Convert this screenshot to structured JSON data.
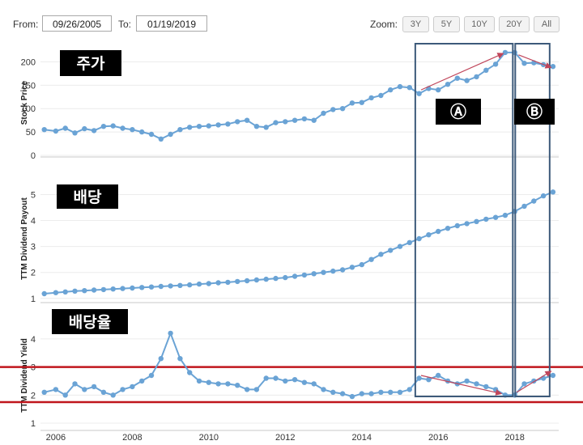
{
  "toolbar": {
    "from_label": "From:",
    "from_value": "09/26/2005",
    "to_label": "To:",
    "to_value": "01/19/2019",
    "zoom_label": "Zoom:",
    "zoom_options": [
      "3Y",
      "5Y",
      "10Y",
      "20Y",
      "All"
    ]
  },
  "colors": {
    "series": "#6aa3d5",
    "highlight_box": "#3d5a7a",
    "threshold_line": "#c0161c",
    "trend_arrow": "#c0455a"
  },
  "annotations": {
    "price_tag": "주가",
    "dividend_tag": "배당",
    "yield_tag": "배당율",
    "period_a": "Ⓐ",
    "period_b": "Ⓑ"
  },
  "chart_data": [
    {
      "type": "line",
      "ylabel": "Stock Price",
      "yticks": [
        0,
        50,
        100,
        150,
        200
      ],
      "ylim": [
        0,
        225
      ],
      "x": [
        2005.7,
        2006,
        2006.25,
        2006.5,
        2006.75,
        2007,
        2007.25,
        2007.5,
        2007.75,
        2008,
        2008.25,
        2008.5,
        2008.75,
        2009,
        2009.25,
        2009.5,
        2009.75,
        2010,
        2010.25,
        2010.5,
        2010.75,
        2011,
        2011.25,
        2011.5,
        2011.75,
        2012,
        2012.25,
        2012.5,
        2012.75,
        2013,
        2013.25,
        2013.5,
        2013.75,
        2014,
        2014.25,
        2014.5,
        2014.75,
        2015,
        2015.25,
        2015.5,
        2015.75,
        2016,
        2016.25,
        2016.5,
        2016.75,
        2017,
        2017.25,
        2017.5,
        2017.75,
        2018,
        2018.25,
        2018.5,
        2018.75,
        2019
      ],
      "values": [
        55,
        52,
        58,
        48,
        57,
        53,
        62,
        63,
        58,
        55,
        50,
        45,
        35,
        45,
        55,
        60,
        62,
        63,
        65,
        67,
        72,
        75,
        62,
        60,
        70,
        72,
        75,
        78,
        75,
        90,
        98,
        100,
        112,
        113,
        123,
        128,
        140,
        147,
        145,
        132,
        143,
        140,
        152,
        165,
        160,
        168,
        182,
        195,
        220,
        220,
        197,
        198,
        194,
        190
      ],
      "xticks": [
        2006,
        2008,
        2010,
        2012,
        2014,
        2016,
        2018
      ]
    },
    {
      "type": "line",
      "ylabel": "TTM Dividend Payout",
      "yticks": [
        1,
        2,
        3,
        4,
        5
      ],
      "ylim": [
        0.9,
        5.7
      ],
      "x": [
        2005.7,
        2006,
        2006.25,
        2006.5,
        2006.75,
        2007,
        2007.25,
        2007.5,
        2007.75,
        2008,
        2008.25,
        2008.5,
        2008.75,
        2009,
        2009.25,
        2009.5,
        2009.75,
        2010,
        2010.25,
        2010.5,
        2010.75,
        2011,
        2011.25,
        2011.5,
        2011.75,
        2012,
        2012.25,
        2012.5,
        2012.75,
        2013,
        2013.25,
        2013.5,
        2013.75,
        2014,
        2014.25,
        2014.5,
        2014.75,
        2015,
        2015.25,
        2015.5,
        2015.75,
        2016,
        2016.25,
        2016.5,
        2016.75,
        2017,
        2017.25,
        2017.5,
        2017.75,
        2018,
        2018.25,
        2018.5,
        2018.75,
        2019
      ],
      "values": [
        1.18,
        1.22,
        1.25,
        1.28,
        1.3,
        1.32,
        1.34,
        1.36,
        1.38,
        1.4,
        1.42,
        1.44,
        1.46,
        1.48,
        1.5,
        1.52,
        1.55,
        1.57,
        1.6,
        1.62,
        1.65,
        1.68,
        1.71,
        1.74,
        1.77,
        1.8,
        1.85,
        1.9,
        1.95,
        2.0,
        2.05,
        2.1,
        2.2,
        2.3,
        2.5,
        2.7,
        2.85,
        3.0,
        3.15,
        3.3,
        3.45,
        3.58,
        3.7,
        3.8,
        3.88,
        3.96,
        4.05,
        4.12,
        4.2,
        4.35,
        4.55,
        4.75,
        4.95,
        5.1
      ]
    },
    {
      "type": "line",
      "ylabel": "TTM Dividend Yield",
      "yticks": [
        1,
        2,
        3,
        4
      ],
      "ylim": [
        0.8,
        4.6
      ],
      "x": [
        2005.7,
        2006,
        2006.25,
        2006.5,
        2006.75,
        2007,
        2007.25,
        2007.5,
        2007.75,
        2008,
        2008.25,
        2008.5,
        2008.75,
        2009,
        2009.25,
        2009.5,
        2009.75,
        2010,
        2010.25,
        2010.5,
        2010.75,
        2011,
        2011.25,
        2011.5,
        2011.75,
        2012,
        2012.25,
        2012.5,
        2012.75,
        2013,
        2013.25,
        2013.5,
        2013.75,
        2014,
        2014.25,
        2014.5,
        2014.75,
        2015,
        2015.25,
        2015.5,
        2015.75,
        2016,
        2016.25,
        2016.5,
        2016.75,
        2017,
        2017.25,
        2017.5,
        2017.75,
        2018,
        2018.25,
        2018.5,
        2018.75,
        2019
      ],
      "values": [
        2.1,
        2.2,
        2.0,
        2.4,
        2.2,
        2.3,
        2.1,
        2.0,
        2.2,
        2.3,
        2.5,
        2.7,
        3.3,
        4.2,
        3.3,
        2.8,
        2.5,
        2.45,
        2.4,
        2.4,
        2.35,
        2.2,
        2.2,
        2.6,
        2.6,
        2.5,
        2.55,
        2.45,
        2.4,
        2.2,
        2.1,
        2.05,
        1.95,
        2.05,
        2.05,
        2.1,
        2.1,
        2.1,
        2.2,
        2.6,
        2.55,
        2.7,
        2.5,
        2.4,
        2.5,
        2.4,
        2.3,
        2.2,
        2.0,
        2.0,
        2.4,
        2.5,
        2.6,
        2.7
      ],
      "reference_lines": [
        3.0,
        1.75
      ]
    }
  ]
}
